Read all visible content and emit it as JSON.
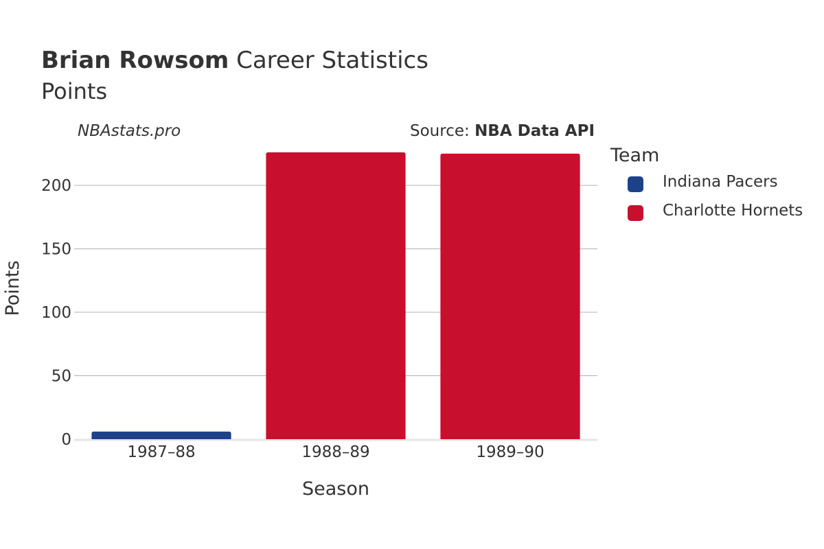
{
  "header": {
    "player": "Brian Rowsom",
    "title_rest": " Career Statistics",
    "subtitle": "Points"
  },
  "watermark": "NBAstats.pro",
  "source": {
    "prefix": "Source: ",
    "name": "NBA Data API"
  },
  "legend": {
    "title": "Team",
    "items": [
      {
        "label": "Indiana Pacers",
        "color": "#1d428a"
      },
      {
        "label": "Charlotte Hornets",
        "color": "#c8102e"
      }
    ]
  },
  "chart_data": {
    "type": "bar",
    "categories": [
      "1987–88",
      "1988–89",
      "1989–90"
    ],
    "series": [
      {
        "name": "Indiana Pacers",
        "color": "#1d428a",
        "values": [
          6,
          null,
          null
        ]
      },
      {
        "name": "Charlotte Hornets",
        "color": "#c8102e",
        "values": [
          null,
          226,
          225
        ]
      }
    ],
    "xlabel": "Season",
    "ylabel": "Points",
    "ylim": [
      0,
      226
    ],
    "yticks": [
      0,
      50,
      100,
      150,
      200
    ],
    "grid": true,
    "legend_position": "right"
  }
}
